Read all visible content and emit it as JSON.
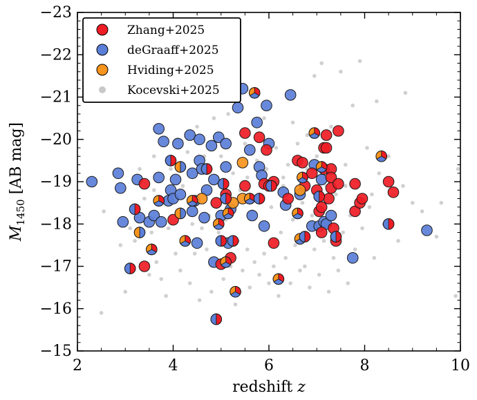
{
  "chart_data": {
    "type": "scatter",
    "xlabel": "redshift",
    "xlabel_var": "z",
    "ylabel_prefix": "M",
    "ylabel_sub": "1450",
    "ylabel_unit": "[AB mag]",
    "xlim": [
      2,
      10
    ],
    "ylim": [
      -15,
      -23
    ],
    "x_ticks": [
      2,
      4,
      6,
      8,
      10
    ],
    "y_ticks": [
      -15,
      -16,
      -17,
      -18,
      -19,
      -20,
      -21,
      -22,
      -23
    ],
    "y_tick_labels": [
      "−15",
      "−16",
      "−17",
      "−18",
      "−19",
      "−20",
      "−21",
      "−22",
      "−23"
    ],
    "legend_position": "top-left",
    "colors": {
      "zhang": "#ee1c25",
      "degraaff": "#5b7fd8",
      "hviding": "#f7941d",
      "kocevski": "#c8c8c8"
    },
    "series": [
      {
        "name": "Zhang+2025",
        "key": "zhang",
        "points": [
          [
            3.4,
            -18.95
          ],
          [
            3.4,
            -17.0
          ],
          [
            4.0,
            -18.1
          ],
          [
            5.0,
            -17.05
          ],
          [
            5.2,
            -17.2
          ],
          [
            5.5,
            -20.15
          ],
          [
            5.5,
            -18.9
          ],
          [
            5.8,
            -20.05
          ],
          [
            5.9,
            -18.95
          ],
          [
            5.95,
            -19.75
          ],
          [
            6.1,
            -19.0
          ],
          [
            6.1,
            -17.55
          ],
          [
            6.6,
            -19.5
          ],
          [
            6.7,
            -19.45
          ],
          [
            6.75,
            -18.9
          ],
          [
            6.9,
            -19.2
          ],
          [
            7.0,
            -18.8
          ],
          [
            7.05,
            -18.3
          ],
          [
            7.1,
            -18.4
          ],
          [
            7.1,
            -17.8
          ],
          [
            7.15,
            -19.8
          ],
          [
            7.15,
            -19.3
          ],
          [
            7.2,
            -20.1
          ],
          [
            7.2,
            -19.8
          ],
          [
            7.25,
            -18.6
          ],
          [
            7.3,
            -19.3
          ],
          [
            7.3,
            -19.1
          ],
          [
            7.3,
            -18.85
          ],
          [
            7.35,
            -17.9
          ],
          [
            7.4,
            -17.6
          ],
          [
            7.45,
            -20.2
          ],
          [
            7.45,
            -18.95
          ],
          [
            7.8,
            -18.95
          ],
          [
            7.8,
            -18.3
          ],
          [
            7.9,
            -18.5
          ],
          [
            7.95,
            -18.6
          ],
          [
            8.5,
            -19.0
          ],
          [
            8.6,
            -18.75
          ],
          [
            5.1,
            -18.7
          ],
          [
            4.9,
            -18.5
          ],
          [
            6.0,
            -18.9
          ],
          [
            6.4,
            -18.6
          ]
        ]
      },
      {
        "name": "deGraaff+2025",
        "key": "degraaff",
        "points": [
          [
            2.3,
            -19.0
          ],
          [
            2.85,
            -19.2
          ],
          [
            2.9,
            -18.85
          ],
          [
            2.95,
            -18.05
          ],
          [
            3.25,
            -19.05
          ],
          [
            3.3,
            -18.15
          ],
          [
            3.5,
            -18.05
          ],
          [
            3.6,
            -18.2
          ],
          [
            3.7,
            -20.25
          ],
          [
            3.7,
            -19.1
          ],
          [
            3.75,
            -18.05
          ],
          [
            3.8,
            -19.95
          ],
          [
            3.9,
            -18.55
          ],
          [
            3.95,
            -18.8
          ],
          [
            4.0,
            -18.6
          ],
          [
            4.05,
            -19.05
          ],
          [
            4.1,
            -19.9
          ],
          [
            4.15,
            -18.7
          ],
          [
            4.35,
            -20.1
          ],
          [
            4.4,
            -19.2
          ],
          [
            4.4,
            -18.3
          ],
          [
            4.45,
            -18.55
          ],
          [
            4.5,
            -17.55
          ],
          [
            4.55,
            -20.0
          ],
          [
            4.55,
            -19.5
          ],
          [
            4.6,
            -19.3
          ],
          [
            4.65,
            -18.15
          ],
          [
            4.7,
            -18.8
          ],
          [
            4.8,
            -19.85
          ],
          [
            4.85,
            -19.05
          ],
          [
            4.85,
            -17.1
          ],
          [
            4.95,
            -20.05
          ],
          [
            5.0,
            -18.2
          ],
          [
            5.05,
            -21.45
          ],
          [
            5.1,
            -19.9
          ],
          [
            5.1,
            -19.35
          ],
          [
            5.15,
            -17.55
          ],
          [
            5.2,
            -18.35
          ],
          [
            5.35,
            -20.75
          ],
          [
            5.45,
            -21.2
          ],
          [
            5.6,
            -19.75
          ],
          [
            5.65,
            -18.2
          ],
          [
            5.75,
            -20.4
          ],
          [
            5.8,
            -19.35
          ],
          [
            5.85,
            -19.15
          ],
          [
            5.9,
            -17.95
          ],
          [
            5.95,
            -20.8
          ],
          [
            6.0,
            -19.9
          ],
          [
            6.3,
            -18.75
          ],
          [
            6.35,
            -18.45
          ],
          [
            6.45,
            -21.05
          ],
          [
            6.65,
            -18.7
          ],
          [
            6.9,
            -17.95
          ],
          [
            6.95,
            -19.4
          ],
          [
            7.05,
            -17.95
          ],
          [
            7.1,
            -19.05
          ],
          [
            7.15,
            -18.05
          ],
          [
            7.2,
            -18.0
          ],
          [
            7.3,
            -18.2
          ],
          [
            7.75,
            -17.2
          ],
          [
            9.3,
            -17.85
          ]
        ]
      },
      {
        "name": "Hviding+2025",
        "key": "hviding",
        "points": [
          [
            5.45,
            -18.6
          ],
          [
            5.25,
            -18.5
          ],
          [
            6.65,
            -18.8
          ],
          [
            5.45,
            -19.45
          ],
          [
            4.6,
            -18.6
          ]
        ]
      },
      {
        "name": "Kocevski+2025",
        "key": "kocevski",
        "points": [
          [
            2.5,
            -15.9
          ],
          [
            2.55,
            -18.3
          ],
          [
            2.9,
            -17.5
          ],
          [
            3.0,
            -16.4
          ],
          [
            3.1,
            -17.9
          ],
          [
            3.2,
            -17.6
          ],
          [
            3.3,
            -19.3
          ],
          [
            3.4,
            -18.6
          ],
          [
            3.5,
            -16.8
          ],
          [
            3.55,
            -17.8
          ],
          [
            3.6,
            -18.8
          ],
          [
            3.65,
            -17.1
          ],
          [
            3.75,
            -16.7
          ],
          [
            3.85,
            -16.3
          ],
          [
            3.9,
            -17.9
          ],
          [
            3.95,
            -19.3
          ],
          [
            4.05,
            -17.3
          ],
          [
            4.1,
            -20.0
          ],
          [
            4.15,
            -16.9
          ],
          [
            4.2,
            -18.9
          ],
          [
            4.25,
            -17.7
          ],
          [
            4.3,
            -19.7
          ],
          [
            4.35,
            -16.6
          ],
          [
            4.4,
            -18.0
          ],
          [
            4.45,
            -17.3
          ],
          [
            4.5,
            -20.3
          ],
          [
            4.55,
            -16.2
          ],
          [
            4.6,
            -17.9
          ],
          [
            4.65,
            -19.6
          ],
          [
            4.7,
            -17.4
          ],
          [
            4.75,
            -18.2
          ],
          [
            4.8,
            -16.4
          ],
          [
            4.85,
            -20.5
          ],
          [
            4.9,
            -18.4
          ],
          [
            4.95,
            -17.8
          ],
          [
            5.0,
            -19.6
          ],
          [
            5.05,
            -16.7
          ],
          [
            5.1,
            -18.1
          ],
          [
            5.15,
            -20.6
          ],
          [
            5.2,
            -17.0
          ],
          [
            5.25,
            -19.2
          ],
          [
            5.3,
            -16.1
          ],
          [
            5.35,
            -17.6
          ],
          [
            5.4,
            -18.8
          ],
          [
            5.45,
            -16.9
          ],
          [
            5.5,
            -19.9
          ],
          [
            5.55,
            -17.4
          ],
          [
            5.6,
            -16.5
          ],
          [
            5.65,
            -18.3
          ],
          [
            5.7,
            -17.1
          ],
          [
            5.75,
            -19.5
          ],
          [
            5.8,
            -16.8
          ],
          [
            5.85,
            -18.0
          ],
          [
            5.9,
            -17.3
          ],
          [
            5.95,
            -19.3
          ],
          [
            6.0,
            -16.6
          ],
          [
            6.05,
            -18.4
          ],
          [
            6.1,
            -17.0
          ],
          [
            6.15,
            -19.8
          ],
          [
            6.2,
            -16.3
          ],
          [
            6.25,
            -17.8
          ],
          [
            6.3,
            -18.9
          ],
          [
            6.35,
            -17.2
          ],
          [
            6.4,
            -19.4
          ],
          [
            6.45,
            -16.6
          ],
          [
            6.5,
            -18.1
          ],
          [
            6.55,
            -17.5
          ],
          [
            6.6,
            -19.9
          ],
          [
            6.65,
            -16.9
          ],
          [
            6.7,
            -18.5
          ],
          [
            6.75,
            -17.0
          ],
          [
            6.8,
            -20.1
          ],
          [
            6.85,
            -16.5
          ],
          [
            6.9,
            -18.2
          ],
          [
            6.95,
            -17.4
          ],
          [
            7.0,
            -19.6
          ],
          [
            7.05,
            -16.8
          ],
          [
            7.1,
            -21.8
          ],
          [
            7.15,
            -17.6
          ],
          [
            7.2,
            -18.9
          ],
          [
            7.25,
            -16.4
          ],
          [
            7.3,
            -20.3
          ],
          [
            7.35,
            -17.2
          ],
          [
            7.4,
            -18.7
          ],
          [
            7.45,
            -16.9
          ],
          [
            7.5,
            -21.6
          ],
          [
            7.55,
            -17.8
          ],
          [
            7.6,
            -19.4
          ],
          [
            7.65,
            -16.6
          ],
          [
            7.7,
            -18.2
          ],
          [
            7.75,
            -20.8
          ],
          [
            7.8,
            -17.4
          ],
          [
            7.85,
            -19.0
          ],
          [
            7.9,
            -21.85
          ],
          [
            7.95,
            -17.9
          ],
          [
            8.05,
            -19.8
          ],
          [
            8.1,
            -18.4
          ],
          [
            8.2,
            -17.2
          ],
          [
            8.3,
            -19.2
          ],
          [
            8.4,
            -18.0
          ],
          [
            8.5,
            -19.6
          ],
          [
            8.6,
            -18.7
          ],
          [
            8.7,
            -17.6
          ],
          [
            8.8,
            -18.9
          ],
          [
            9.0,
            -18.5
          ],
          [
            9.2,
            -18.3
          ],
          [
            9.5,
            -17.7
          ],
          [
            9.6,
            -18.5
          ],
          [
            9.9,
            -16.3
          ],
          [
            9.95,
            -19.3
          ],
          [
            8.85,
            -21.1
          ],
          [
            8.25,
            -20.9
          ],
          [
            6.95,
            -21.5
          ],
          [
            6.5,
            -20.4
          ],
          [
            5.9,
            -20.5
          ],
          [
            4.45,
            -20.05
          ],
          [
            3.6,
            -19.6
          ],
          [
            4.1,
            -18.6
          ],
          [
            5.0,
            -19.0
          ],
          [
            5.55,
            -19.1
          ],
          [
            6.3,
            -19.1
          ],
          [
            6.8,
            -19.3
          ],
          [
            7.6,
            -18.9
          ],
          [
            8.15,
            -18.7
          ]
        ]
      }
    ],
    "multi_markers": [
      [
        3.1,
        -16.95,
        "zhang",
        "degraaff"
      ],
      [
        3.2,
        -18.35,
        "zhang",
        "degraaff"
      ],
      [
        3.3,
        -17.8,
        "degraaff",
        "hviding"
      ],
      [
        3.55,
        -17.4,
        "zhang",
        "degraaff",
        "hviding"
      ],
      [
        3.7,
        -18.55,
        "zhang",
        "degraaff",
        "hviding"
      ],
      [
        3.95,
        -19.5,
        "zhang",
        "degraaff"
      ],
      [
        4.15,
        -19.35,
        "degraaff",
        "hviding"
      ],
      [
        4.15,
        -18.25,
        "degraaff",
        "hviding"
      ],
      [
        4.25,
        -17.6,
        "zhang",
        "degraaff",
        "hviding"
      ],
      [
        4.4,
        -18.55,
        "zhang",
        "degraaff",
        "hviding"
      ],
      [
        4.7,
        -19.3,
        "zhang",
        "degraaff"
      ],
      [
        4.9,
        -15.75,
        "zhang",
        "degraaff"
      ],
      [
        4.95,
        -18.0,
        "zhang",
        "degraaff",
        "hviding"
      ],
      [
        5.0,
        -17.6,
        "zhang",
        "degraaff"
      ],
      [
        5.05,
        -18.95,
        "zhang",
        "degraaff"
      ],
      [
        5.1,
        -18.6,
        "zhang",
        "degraaff"
      ],
      [
        5.15,
        -18.25,
        "zhang",
        "degraaff",
        "hviding"
      ],
      [
        5.1,
        -17.1,
        "zhang",
        "degraaff",
        "hviding"
      ],
      [
        5.25,
        -17.6,
        "zhang",
        "degraaff"
      ],
      [
        5.3,
        -16.4,
        "zhang",
        "degraaff",
        "hviding"
      ],
      [
        5.6,
        -18.6,
        "zhang",
        "degraaff",
        "hviding"
      ],
      [
        5.7,
        -21.1,
        "zhang",
        "degraaff",
        "hviding"
      ],
      [
        5.8,
        -18.6,
        "zhang",
        "degraaff"
      ],
      [
        6.05,
        -18.9,
        "zhang",
        "degraaff"
      ],
      [
        6.2,
        -16.7,
        "zhang",
        "degraaff",
        "hviding"
      ],
      [
        6.6,
        -18.25,
        "zhang",
        "degraaff",
        "hviding"
      ],
      [
        6.65,
        -17.65,
        "zhang",
        "degraaff",
        "hviding"
      ],
      [
        6.7,
        -19.1,
        "zhang",
        "degraaff",
        "hviding"
      ],
      [
        6.75,
        -17.7,
        "zhang",
        "degraaff"
      ],
      [
        6.95,
        -20.15,
        "zhang",
        "degraaff",
        "hviding"
      ],
      [
        7.05,
        -18.65,
        "zhang",
        "degraaff"
      ],
      [
        7.1,
        -19.35,
        "zhang",
        "degraaff",
        "hviding"
      ],
      [
        7.4,
        -17.7,
        "zhang",
        "degraaff"
      ],
      [
        8.35,
        -19.6,
        "zhang",
        "degraaff",
        "hviding"
      ],
      [
        8.5,
        -18.0,
        "zhang",
        "degraaff"
      ]
    ]
  }
}
